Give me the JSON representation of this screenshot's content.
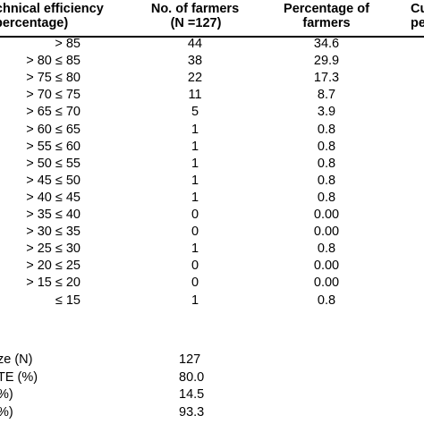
{
  "header": {
    "col1_line1": "technical efficiency",
    "col1_line2": "percentage)",
    "col2_line1": "No. of farmers",
    "col2_line2": "(N =127)",
    "col3_line1": "Percentage of",
    "col3_line2": "farmers",
    "col4_line1": "Cu",
    "col4_line2": "pe"
  },
  "rows": [
    {
      "range": "> 85",
      "count": "44",
      "percent": "34.6"
    },
    {
      "range": "> 80 ≤ 85",
      "count": "38",
      "percent": "29.9"
    },
    {
      "range": "> 75 ≤ 80",
      "count": "22",
      "percent": "17.3"
    },
    {
      "range": "> 70 ≤ 75",
      "count": "11",
      "percent": "8.7"
    },
    {
      "range": "> 65 ≤ 70",
      "count": "5",
      "percent": "3.9"
    },
    {
      "range": "> 60 ≤ 65",
      "count": "1",
      "percent": "0.8"
    },
    {
      "range": "> 55 ≤ 60",
      "count": "1",
      "percent": "0.8"
    },
    {
      "range": "> 50 ≤ 55",
      "count": "1",
      "percent": "0.8"
    },
    {
      "range": "> 45 ≤ 50",
      "count": "1",
      "percent": "0.8"
    },
    {
      "range": "> 40 ≤ 45",
      "count": "1",
      "percent": "0.8"
    },
    {
      "range": "> 35 ≤ 40",
      "count": "0",
      "percent": "0.00"
    },
    {
      "range": "> 30 ≤ 35",
      "count": "0",
      "percent": "0.00"
    },
    {
      "range": "> 25 ≤ 30",
      "count": "1",
      "percent": "0.8"
    },
    {
      "range": "> 20 ≤ 25",
      "count": "0",
      "percent": "0.00"
    },
    {
      "range": "> 15 ≤ 20",
      "count": "0",
      "percent": "0.00"
    },
    {
      "range": "≤ 15",
      "count": "1",
      "percent": "0.8"
    }
  ],
  "summary": [
    {
      "label": "ze (N)",
      "value": "127"
    },
    {
      "label": "TE (%)",
      "value": "80.0"
    },
    {
      "label": "%)",
      "value": "14.5"
    },
    {
      "label": "%)",
      "value": "93.3"
    }
  ]
}
